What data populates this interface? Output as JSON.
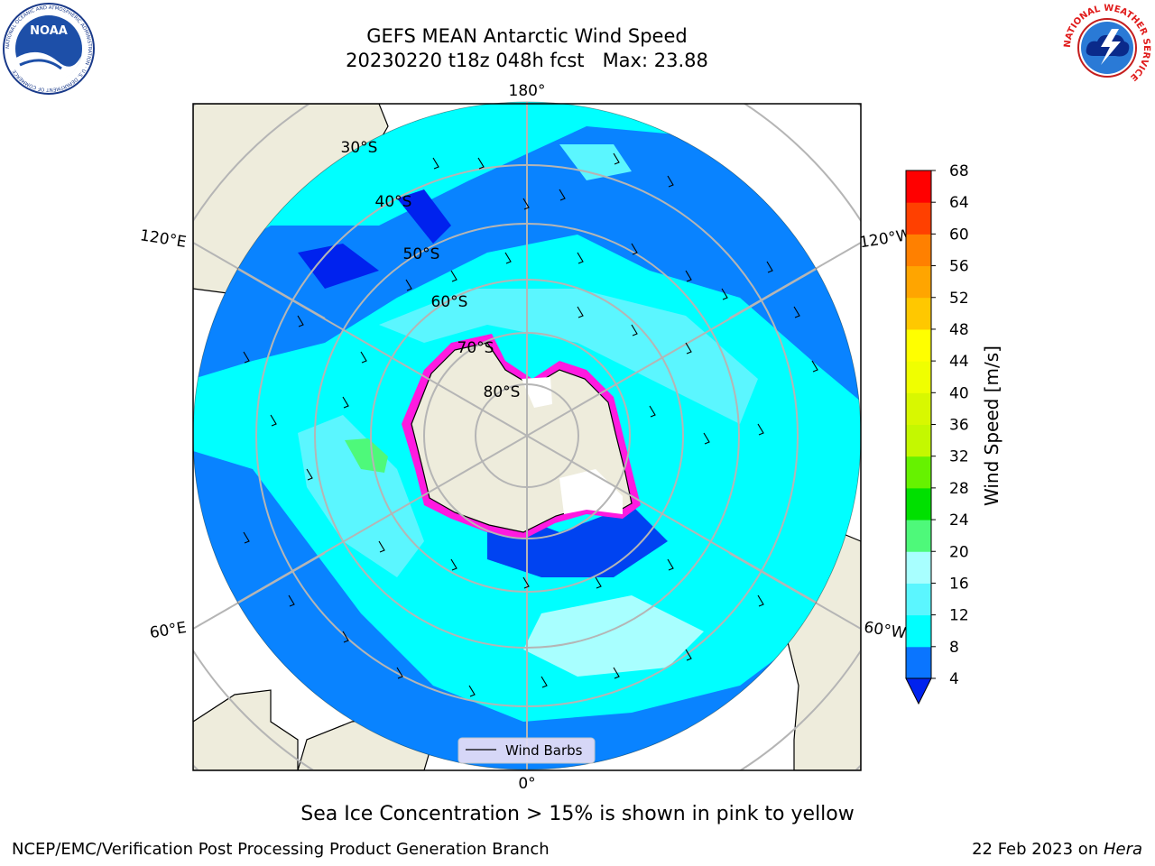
{
  "header": {
    "title_line1": "GEFS MEAN Antarctic Wind Speed",
    "title_line2": "20230220 t18z 048h fcst   Max: 23.88"
  },
  "logos": {
    "left_name": "NOAA",
    "left_ring_text": "NATIONAL OCEANIC AND ATMOSPHERIC ADMINISTRATION · U.S. DEPARTMENT OF COMMERCE",
    "right_ring_text": "NATIONAL WEATHER SERVICE"
  },
  "map": {
    "projection": "south-polar-stereographic",
    "lat_labels": [
      "30°S",
      "40°S",
      "50°S",
      "60°S",
      "70°S",
      "80°S"
    ],
    "lon_labels": {
      "top": "180°",
      "bottom": "0°",
      "upper_left": "120°E",
      "upper_right": "120°W",
      "lower_left": "60°E",
      "lower_right": "60°W"
    },
    "legend_label": "Wind Barbs",
    "colors": {
      "land": "#eeecdc",
      "ocean_outside": "#ffffff",
      "speed_4_8": "#0a5bff",
      "speed_8_12": "#00ffff",
      "speed_12_16": "#5bf7ff",
      "speed_16_20": "#a8ffff",
      "below_4": "#0022ee",
      "sea_ice_edge": "#ff1ae0"
    }
  },
  "colorbar": {
    "label": "Wind Speed [m/s]",
    "ticks": [
      "4",
      "8",
      "12",
      "16",
      "20",
      "24",
      "28",
      "32",
      "36",
      "40",
      "44",
      "48",
      "52",
      "56",
      "60",
      "64",
      "68"
    ],
    "bins": [
      {
        "from": 4,
        "to": 8,
        "color": "#0a75ff"
      },
      {
        "from": 8,
        "to": 12,
        "color": "#00ffff"
      },
      {
        "from": 12,
        "to": 16,
        "color": "#5bf6ff"
      },
      {
        "from": 16,
        "to": 20,
        "color": "#a8ffff"
      },
      {
        "from": 20,
        "to": 24,
        "color": "#4ef97a"
      },
      {
        "from": 24,
        "to": 28,
        "color": "#00e000"
      },
      {
        "from": 28,
        "to": 32,
        "color": "#66f200"
      },
      {
        "from": 32,
        "to": 36,
        "color": "#c4f800"
      },
      {
        "from": 36,
        "to": 40,
        "color": "#d8f800"
      },
      {
        "from": 40,
        "to": 44,
        "color": "#f0ff00"
      },
      {
        "from": 44,
        "to": 48,
        "color": "#ffff00"
      },
      {
        "from": 48,
        "to": 52,
        "color": "#ffc800"
      },
      {
        "from": 52,
        "to": 56,
        "color": "#ffa500"
      },
      {
        "from": 56,
        "to": 60,
        "color": "#ff8000"
      },
      {
        "from": 60,
        "to": 64,
        "color": "#ff4000"
      },
      {
        "from": 64,
        "to": 68,
        "color": "#ff0000"
      }
    ],
    "under_color": "#0022ee"
  },
  "caption": "Sea Ice Concentration > 15% is shown in pink to yellow",
  "footer": {
    "left": "NCEP/EMC/Verification Post Processing Product Generation Branch",
    "right_prefix": "22 Feb 2023 on ",
    "right_machine": "Hera"
  }
}
